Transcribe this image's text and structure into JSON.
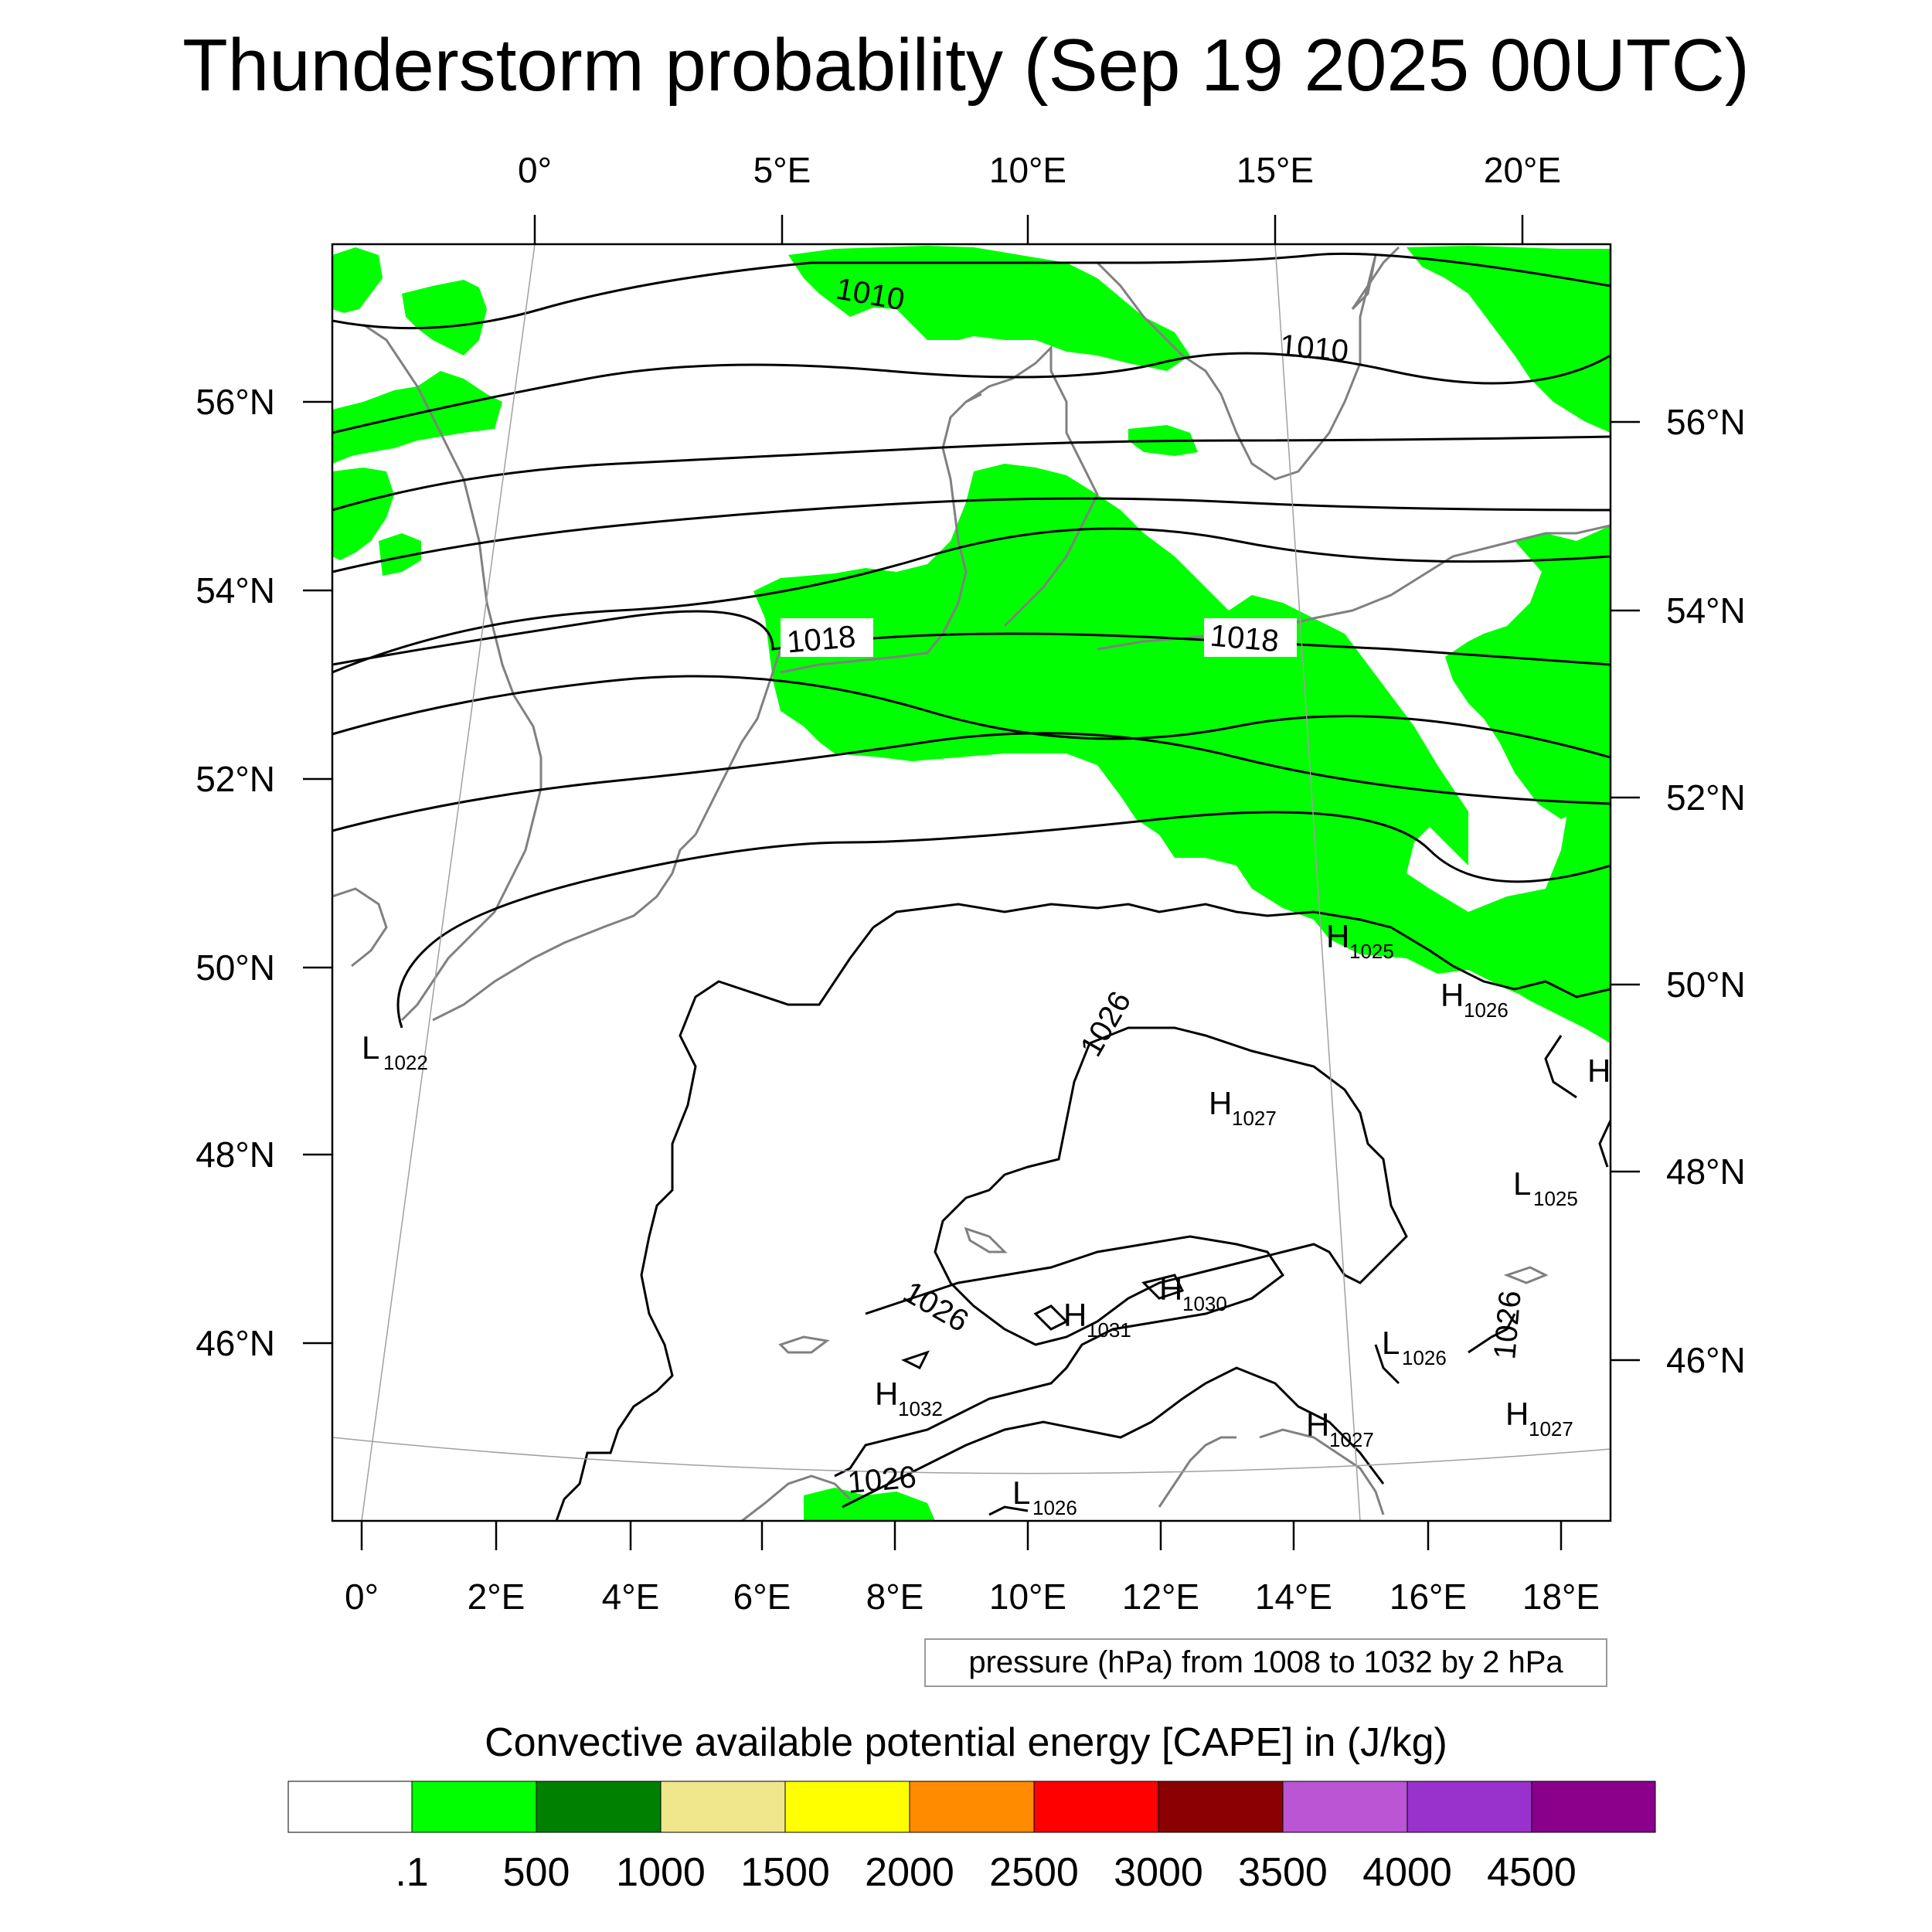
{
  "title": "Thunderstorm probability (Sep 19 2025 00UTC)",
  "top_axis": {
    "labels": [
      "0°",
      "5°E",
      "10°E",
      "15°E",
      "20°E"
    ]
  },
  "bottom_axis": {
    "labels": [
      "0°",
      "2°E",
      "4°E",
      "6°E",
      "8°E",
      "10°E",
      "12°E",
      "14°E",
      "16°E",
      "18°E"
    ]
  },
  "left_axis": {
    "labels": [
      "56°N",
      "54°N",
      "52°N",
      "50°N",
      "48°N",
      "46°N"
    ]
  },
  "right_axis": {
    "labels": [
      "56°N",
      "54°N",
      "52°N",
      "50°N",
      "48°N",
      "46°N"
    ]
  },
  "contour_labels": [
    "1010",
    "1010",
    "1018",
    "1018",
    "1026",
    "1026",
    "1026",
    "1026"
  ],
  "pressure_centers": [
    {
      "letter": "L",
      "value": "1022"
    },
    {
      "letter": "H",
      "value": "1025"
    },
    {
      "letter": "H",
      "value": "1026"
    },
    {
      "letter": "H",
      "value": "1027"
    },
    {
      "letter": "L",
      "value": "1025"
    },
    {
      "letter": "H",
      "value": "1030"
    },
    {
      "letter": "H",
      "value": "1031"
    },
    {
      "letter": "H",
      "value": "1032"
    },
    {
      "letter": "L",
      "value": "1026"
    },
    {
      "letter": "H",
      "value": "1027"
    },
    {
      "letter": "H",
      "value": "1027"
    },
    {
      "letter": "L",
      "value": "1026"
    },
    {
      "letter": "H",
      "value": ""
    }
  ],
  "contour_info": "pressure (hPa) from 1008 to 1032 by 2 hPa",
  "colorbar": {
    "title": "Convective available potential energy [CAPE] in (J/kg)",
    "colors": [
      "#ffffff",
      "#00ff00",
      "#008000",
      "#f0e68c",
      "#ffff00",
      "#ff8c00",
      "#ff0000",
      "#8b0000",
      "#ba55d3",
      "#9932cc",
      "#8b008b"
    ],
    "labels": [
      ".1",
      "500",
      "1000",
      "1500",
      "2000",
      "2500",
      "3000",
      "3500",
      "4000",
      "4500"
    ]
  },
  "colors": {
    "cape_green": "#00ff00",
    "coast": "#808080",
    "isobar": "#000000"
  }
}
